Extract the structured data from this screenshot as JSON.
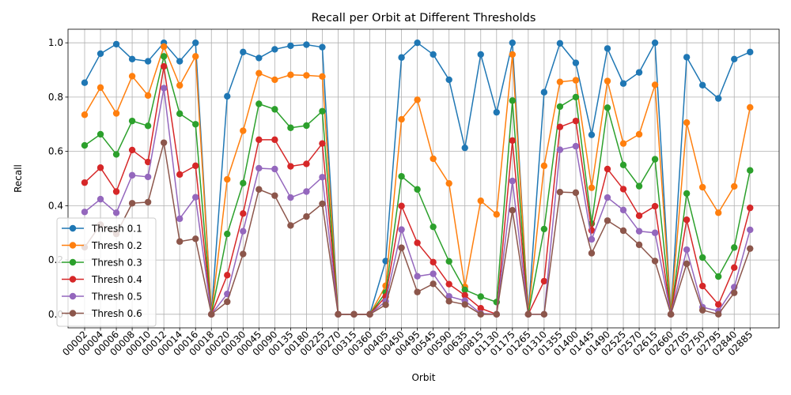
{
  "chart_data": {
    "type": "line",
    "title": "Recall per Orbit at Different Thresholds",
    "xlabel": "Orbit",
    "ylabel": "Recall",
    "ylim": [
      -0.05,
      1.05
    ],
    "yticks": [
      "0.0",
      "0.2",
      "0.4",
      "0.6",
      "0.8",
      "1.0"
    ],
    "grid": true,
    "legend_position": "lower-left",
    "categories": [
      "00002",
      "00004",
      "00006",
      "00008",
      "00010",
      "00012",
      "00014",
      "00016",
      "00018",
      "00020",
      "00030",
      "00045",
      "00090",
      "00135",
      "00180",
      "00225",
      "00270",
      "00315",
      "00360",
      "00405",
      "00450",
      "00495",
      "00545",
      "00590",
      "00635",
      "00815",
      "01130",
      "01175",
      "01265",
      "01310",
      "01355",
      "01400",
      "01445",
      "01490",
      "02525",
      "02570",
      "02615",
      "02660",
      "02705",
      "02750",
      "02795",
      "02840",
      "02885"
    ],
    "series": [
      {
        "name": "Thresh 0.1",
        "color": "#1f77b4",
        "values": [
          0.853,
          0.96,
          0.995,
          0.94,
          0.932,
          1.0,
          0.932,
          1.0,
          0.0,
          0.803,
          0.966,
          0.944,
          0.976,
          0.989,
          0.993,
          0.984,
          0.0,
          0.0,
          0.0,
          0.196,
          0.946,
          1.0,
          0.957,
          0.864,
          0.613,
          0.957,
          0.744,
          1.0,
          0.0,
          0.818,
          0.998,
          0.926,
          0.661,
          0.979,
          0.85,
          0.891,
          1.0,
          0.0,
          0.947,
          0.844,
          0.795,
          0.94,
          0.966
        ]
      },
      {
        "name": "Thresh 0.2",
        "color": "#ff7f0e",
        "values": [
          0.735,
          0.835,
          0.74,
          0.877,
          0.806,
          0.986,
          0.843,
          0.95,
          0.0,
          0.497,
          0.676,
          0.888,
          0.864,
          0.882,
          0.88,
          0.876,
          0.0,
          0.0,
          0.0,
          0.105,
          0.718,
          0.79,
          0.573,
          0.482,
          0.101,
          0.418,
          0.368,
          0.957,
          0.0,
          0.547,
          0.856,
          0.862,
          0.466,
          0.859,
          0.629,
          0.663,
          0.845,
          0.0,
          0.706,
          0.468,
          0.374,
          0.471,
          0.762
        ]
      },
      {
        "name": "Thresh 0.3",
        "color": "#2ca02c",
        "values": [
          0.622,
          0.663,
          0.589,
          0.712,
          0.694,
          0.95,
          0.739,
          0.7,
          0.0,
          0.296,
          0.483,
          0.775,
          0.755,
          0.687,
          0.695,
          0.748,
          0.0,
          0.0,
          0.0,
          0.08,
          0.508,
          0.46,
          0.322,
          0.195,
          0.09,
          0.065,
          0.045,
          0.787,
          0.0,
          0.314,
          0.765,
          0.8,
          0.334,
          0.761,
          0.55,
          0.472,
          0.571,
          0.0,
          0.445,
          0.209,
          0.139,
          0.246,
          0.53
        ]
      },
      {
        "name": "Thresh 0.4",
        "color": "#d62728",
        "values": [
          0.485,
          0.54,
          0.452,
          0.605,
          0.561,
          0.913,
          0.515,
          0.547,
          0.0,
          0.144,
          0.371,
          0.643,
          0.643,
          0.545,
          0.554,
          0.629,
          0.0,
          0.0,
          0.0,
          0.065,
          0.399,
          0.263,
          0.192,
          0.111,
          0.07,
          0.022,
          0.0,
          0.64,
          0.0,
          0.122,
          0.69,
          0.712,
          0.309,
          0.535,
          0.461,
          0.363,
          0.398,
          0.0,
          0.348,
          0.104,
          0.036,
          0.172,
          0.392
        ]
      },
      {
        "name": "Thresh 0.5",
        "color": "#9467bd",
        "values": [
          0.377,
          0.424,
          0.374,
          0.512,
          0.506,
          0.833,
          0.352,
          0.431,
          0.0,
          0.075,
          0.306,
          0.538,
          0.535,
          0.43,
          0.452,
          0.505,
          0.0,
          0.0,
          0.0,
          0.048,
          0.312,
          0.14,
          0.149,
          0.066,
          0.05,
          0.003,
          0.0,
          0.491,
          0.0,
          0.0,
          0.606,
          0.619,
          0.276,
          0.43,
          0.384,
          0.306,
          0.3,
          0.0,
          0.238,
          0.026,
          0.012,
          0.1,
          0.311
        ]
      },
      {
        "name": "Thresh 0.6",
        "color": "#8c564b",
        "values": [
          0.247,
          0.33,
          0.296,
          0.409,
          0.413,
          0.632,
          0.268,
          0.278,
          0.0,
          0.046,
          0.222,
          0.46,
          0.437,
          0.327,
          0.36,
          0.407,
          0.0,
          0.0,
          0.0,
          0.035,
          0.245,
          0.082,
          0.112,
          0.048,
          0.036,
          0.0,
          0.0,
          0.383,
          0.0,
          0.0,
          0.45,
          0.448,
          0.225,
          0.345,
          0.308,
          0.256,
          0.196,
          0.0,
          0.186,
          0.015,
          0.0,
          0.079,
          0.242
        ]
      }
    ]
  }
}
